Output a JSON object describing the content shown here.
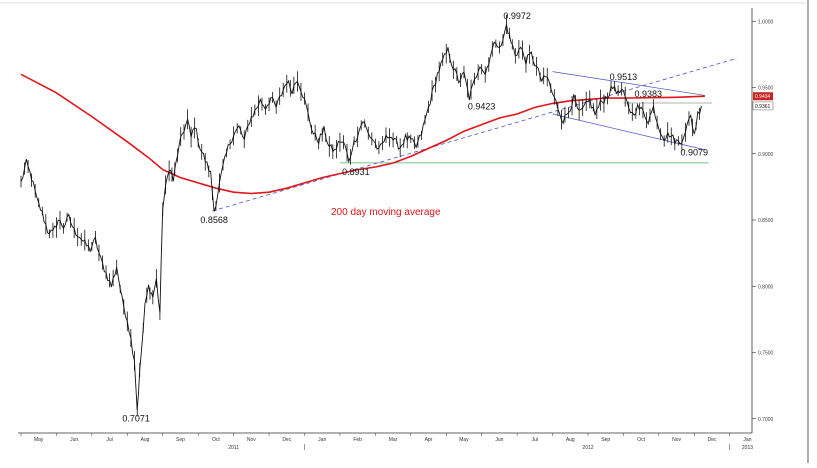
{
  "chart_data": {
    "type": "line",
    "title": "",
    "xlabel": "",
    "ylabel": "",
    "ylim": [
      0.69,
      1.01
    ],
    "y_ticks": [
      "0.7000",
      "0.7500",
      "0.8000",
      "0.8500",
      "0.9000",
      "0.9500",
      "1.0000"
    ],
    "x_months": [
      "May",
      "Jun",
      "Jul",
      "Aug",
      "Sep",
      "Oct",
      "Nov",
      "Dec",
      "Jan",
      "Feb",
      "Mar",
      "Apr",
      "May",
      "Jun",
      "Jul",
      "Aug",
      "Sep",
      "Oct",
      "Nov",
      "Dec",
      "Jan"
    ],
    "years": [
      "2011",
      "2012",
      "2013"
    ],
    "colors": {
      "price": "#111111",
      "ma": "#e2151b",
      "trend": "#4a56c7",
      "support": "#43b768",
      "grid": "#999999",
      "current": "#cc2222"
    },
    "price_points": [
      {
        "t": 0,
        "v": 0.878
      },
      {
        "t": 0.15,
        "v": 0.893
      },
      {
        "t": 0.3,
        "v": 0.882
      },
      {
        "t": 0.45,
        "v": 0.865
      },
      {
        "t": 0.6,
        "v": 0.855
      },
      {
        "t": 0.75,
        "v": 0.842
      },
      {
        "t": 0.9,
        "v": 0.84
      },
      {
        "t": 1.05,
        "v": 0.85
      },
      {
        "t": 1.2,
        "v": 0.845
      },
      {
        "t": 1.35,
        "v": 0.852
      },
      {
        "t": 1.5,
        "v": 0.842
      },
      {
        "t": 1.65,
        "v": 0.838
      },
      {
        "t": 1.8,
        "v": 0.832
      },
      {
        "t": 1.95,
        "v": 0.828
      },
      {
        "t": 2.1,
        "v": 0.835
      },
      {
        "t": 2.25,
        "v": 0.82
      },
      {
        "t": 2.4,
        "v": 0.81
      },
      {
        "t": 2.55,
        "v": 0.8
      },
      {
        "t": 2.7,
        "v": 0.815
      },
      {
        "t": 2.85,
        "v": 0.79
      },
      {
        "t": 3.0,
        "v": 0.775
      },
      {
        "t": 3.1,
        "v": 0.76
      },
      {
        "t": 3.2,
        "v": 0.745
      },
      {
        "t": 3.28,
        "v": 0.7071
      },
      {
        "t": 3.35,
        "v": 0.735
      },
      {
        "t": 3.5,
        "v": 0.785
      },
      {
        "t": 3.6,
        "v": 0.8
      },
      {
        "t": 3.72,
        "v": 0.792
      },
      {
        "t": 3.82,
        "v": 0.805
      },
      {
        "t": 3.92,
        "v": 0.78
      },
      {
        "t": 4.0,
        "v": 0.86
      },
      {
        "t": 4.08,
        "v": 0.874
      },
      {
        "t": 4.18,
        "v": 0.89
      },
      {
        "t": 4.3,
        "v": 0.88
      },
      {
        "t": 4.42,
        "v": 0.9
      },
      {
        "t": 4.55,
        "v": 0.915
      },
      {
        "t": 4.7,
        "v": 0.925
      },
      {
        "t": 4.8,
        "v": 0.912
      },
      {
        "t": 4.9,
        "v": 0.922
      },
      {
        "t": 5.05,
        "v": 0.905
      },
      {
        "t": 5.2,
        "v": 0.895
      },
      {
        "t": 5.35,
        "v": 0.885
      },
      {
        "t": 5.45,
        "v": 0.8568
      },
      {
        "t": 5.55,
        "v": 0.87
      },
      {
        "t": 5.7,
        "v": 0.89
      },
      {
        "t": 5.85,
        "v": 0.905
      },
      {
        "t": 6.0,
        "v": 0.915
      },
      {
        "t": 6.15,
        "v": 0.92
      },
      {
        "t": 6.3,
        "v": 0.91
      },
      {
        "t": 6.45,
        "v": 0.925
      },
      {
        "t": 6.6,
        "v": 0.932
      },
      {
        "t": 6.75,
        "v": 0.94
      },
      {
        "t": 6.9,
        "v": 0.935
      },
      {
        "t": 7.05,
        "v": 0.942
      },
      {
        "t": 7.2,
        "v": 0.935
      },
      {
        "t": 7.35,
        "v": 0.945
      },
      {
        "t": 7.5,
        "v": 0.955
      },
      {
        "t": 7.65,
        "v": 0.948
      },
      {
        "t": 7.8,
        "v": 0.957
      },
      {
        "t": 7.95,
        "v": 0.945
      },
      {
        "t": 8.1,
        "v": 0.93
      },
      {
        "t": 8.25,
        "v": 0.915
      },
      {
        "t": 8.4,
        "v": 0.91
      },
      {
        "t": 8.55,
        "v": 0.918
      },
      {
        "t": 8.7,
        "v": 0.905
      },
      {
        "t": 8.85,
        "v": 0.902
      },
      {
        "t": 9.0,
        "v": 0.91
      },
      {
        "t": 9.15,
        "v": 0.906
      },
      {
        "t": 9.25,
        "v": 0.8931
      },
      {
        "t": 9.35,
        "v": 0.905
      },
      {
        "t": 9.5,
        "v": 0.915
      },
      {
        "t": 9.65,
        "v": 0.925
      },
      {
        "t": 9.8,
        "v": 0.915
      },
      {
        "t": 9.95,
        "v": 0.91
      },
      {
        "t": 10.1,
        "v": 0.902
      },
      {
        "t": 10.25,
        "v": 0.91
      },
      {
        "t": 10.4,
        "v": 0.915
      },
      {
        "t": 10.55,
        "v": 0.909
      },
      {
        "t": 10.7,
        "v": 0.905
      },
      {
        "t": 10.85,
        "v": 0.912
      },
      {
        "t": 11.0,
        "v": 0.91
      },
      {
        "t": 11.15,
        "v": 0.905
      },
      {
        "t": 11.3,
        "v": 0.915
      },
      {
        "t": 11.45,
        "v": 0.93
      },
      {
        "t": 11.6,
        "v": 0.945
      },
      {
        "t": 11.75,
        "v": 0.96
      },
      {
        "t": 11.9,
        "v": 0.97
      },
      {
        "t": 12.05,
        "v": 0.978
      },
      {
        "t": 12.2,
        "v": 0.965
      },
      {
        "t": 12.35,
        "v": 0.955
      },
      {
        "t": 12.5,
        "v": 0.96
      },
      {
        "t": 12.65,
        "v": 0.9423
      },
      {
        "t": 12.8,
        "v": 0.955
      },
      {
        "t": 12.95,
        "v": 0.968
      },
      {
        "t": 13.1,
        "v": 0.96
      },
      {
        "t": 13.25,
        "v": 0.975
      },
      {
        "t": 13.4,
        "v": 0.985
      },
      {
        "t": 13.55,
        "v": 0.98
      },
      {
        "t": 13.7,
        "v": 0.9972
      },
      {
        "t": 13.82,
        "v": 0.985
      },
      {
        "t": 13.95,
        "v": 0.975
      },
      {
        "t": 14.1,
        "v": 0.98
      },
      {
        "t": 14.25,
        "v": 0.97
      },
      {
        "t": 14.4,
        "v": 0.975
      },
      {
        "t": 14.55,
        "v": 0.965
      },
      {
        "t": 14.7,
        "v": 0.955
      },
      {
        "t": 14.85,
        "v": 0.958
      },
      {
        "t": 15.0,
        "v": 0.945
      },
      {
        "t": 15.15,
        "v": 0.935
      },
      {
        "t": 15.3,
        "v": 0.925
      },
      {
        "t": 15.45,
        "v": 0.932
      },
      {
        "t": 15.6,
        "v": 0.942
      },
      {
        "t": 15.75,
        "v": 0.93
      },
      {
        "t": 15.9,
        "v": 0.935
      },
      {
        "t": 16.05,
        "v": 0.94
      },
      {
        "t": 16.2,
        "v": 0.93
      },
      {
        "t": 16.35,
        "v": 0.938
      },
      {
        "t": 16.5,
        "v": 0.942
      },
      {
        "t": 16.65,
        "v": 0.948
      },
      {
        "t": 16.75,
        "v": 0.9513
      },
      {
        "t": 16.85,
        "v": 0.945
      },
      {
        "t": 16.95,
        "v": 0.948
      },
      {
        "t": 17.1,
        "v": 0.938
      },
      {
        "t": 17.25,
        "v": 0.93
      },
      {
        "t": 17.4,
        "v": 0.935
      },
      {
        "t": 17.55,
        "v": 0.932
      },
      {
        "t": 17.7,
        "v": 0.925
      },
      {
        "t": 17.85,
        "v": 0.935
      },
      {
        "t": 18.0,
        "v": 0.92
      },
      {
        "t": 18.15,
        "v": 0.912
      },
      {
        "t": 18.3,
        "v": 0.915
      },
      {
        "t": 18.45,
        "v": 0.91
      },
      {
        "t": 18.6,
        "v": 0.9079
      },
      {
        "t": 18.75,
        "v": 0.918
      },
      {
        "t": 18.9,
        "v": 0.928
      },
      {
        "t": 19.0,
        "v": 0.915
      },
      {
        "t": 19.1,
        "v": 0.93
      },
      {
        "t": 19.2,
        "v": 0.9361
      }
    ],
    "ma_points": [
      {
        "t": 0,
        "v": 0.96
      },
      {
        "t": 1,
        "v": 0.946
      },
      {
        "t": 2,
        "v": 0.928
      },
      {
        "t": 3,
        "v": 0.909
      },
      {
        "t": 3.6,
        "v": 0.897
      },
      {
        "t": 4,
        "v": 0.888
      },
      {
        "t": 4.5,
        "v": 0.882
      },
      {
        "t": 5,
        "v": 0.878
      },
      {
        "t": 5.5,
        "v": 0.874
      },
      {
        "t": 6,
        "v": 0.871
      },
      {
        "t": 6.5,
        "v": 0.87
      },
      {
        "t": 7,
        "v": 0.871
      },
      {
        "t": 7.5,
        "v": 0.874
      },
      {
        "t": 8,
        "v": 0.878
      },
      {
        "t": 8.5,
        "v": 0.882
      },
      {
        "t": 9,
        "v": 0.885
      },
      {
        "t": 9.5,
        "v": 0.888
      },
      {
        "t": 10,
        "v": 0.89
      },
      {
        "t": 10.5,
        "v": 0.893
      },
      {
        "t": 11,
        "v": 0.898
      },
      {
        "t": 11.5,
        "v": 0.904
      },
      {
        "t": 12,
        "v": 0.91
      },
      {
        "t": 12.5,
        "v": 0.917
      },
      {
        "t": 13,
        "v": 0.922
      },
      {
        "t": 13.5,
        "v": 0.927
      },
      {
        "t": 14,
        "v": 0.93
      },
      {
        "t": 14.5,
        "v": 0.935
      },
      {
        "t": 15,
        "v": 0.938
      },
      {
        "t": 15.5,
        "v": 0.94
      },
      {
        "t": 16,
        "v": 0.941
      },
      {
        "t": 16.5,
        "v": 0.942
      },
      {
        "t": 17,
        "v": 0.942
      },
      {
        "t": 17.5,
        "v": 0.9422
      },
      {
        "t": 18,
        "v": 0.9424
      },
      {
        "t": 18.5,
        "v": 0.9426
      },
      {
        "t": 19.3,
        "v": 0.9434
      }
    ],
    "trend_dashed": {
      "t1": 5.4,
      "v1": 0.8568,
      "t2": 20.2,
      "v2": 0.972
    },
    "channel_upper": {
      "t1": 15.0,
      "v1": 0.962,
      "t2": 19.3,
      "v2": 0.944
    },
    "channel_lower": {
      "t1": 15.0,
      "v1": 0.93,
      "t2": 19.3,
      "v2": 0.903
    },
    "support_level": {
      "t1": 9.0,
      "t2": 19.4,
      "v": 0.8931
    },
    "resistance_level": {
      "t1": 17.0,
      "t2": 19.5,
      "v": 0.9383
    },
    "current_price_label": "0.9361",
    "ma_price_label": "0.9434",
    "annotations": [
      {
        "label": "0.7071",
        "t": 3.25,
        "v": 0.7071,
        "pos": "below"
      },
      {
        "label": "0.8568",
        "t": 5.45,
        "v": 0.8568,
        "pos": "below"
      },
      {
        "label": "0.8931",
        "t": 9.45,
        "v": 0.8931,
        "pos": "below"
      },
      {
        "label": "0.9423",
        "t": 13.0,
        "v": 0.9423,
        "pos": "below"
      },
      {
        "label": "0.9972",
        "t": 14.0,
        "v": 0.9972,
        "pos": "above"
      },
      {
        "label": "0.9513",
        "t": 17.0,
        "v": 0.9513,
        "pos": "above"
      },
      {
        "label": "0.9383",
        "t": 17.7,
        "v": 0.9383,
        "pos": "above"
      },
      {
        "label": "0.9079",
        "t": 19.0,
        "v": 0.9079,
        "pos": "below"
      }
    ],
    "ma_label": "200 day moving average"
  }
}
